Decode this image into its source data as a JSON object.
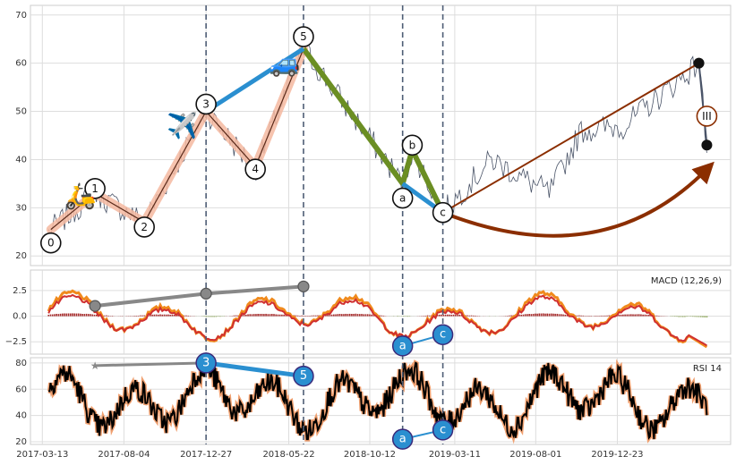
{
  "chart_data": [
    {
      "type": "line",
      "panel": "price",
      "ylim": [
        18,
        72
      ],
      "yticks": [
        20,
        30,
        40,
        50,
        60,
        70
      ],
      "grid": true,
      "series": [],
      "wave_labels": [
        {
          "label": "0",
          "x": "2017-03-28",
          "y": 22.7
        },
        {
          "label": "1",
          "x": "2017-06-14",
          "y": 34.0
        },
        {
          "label": "2",
          "x": "2017-09-09",
          "y": 26.0
        },
        {
          "label": "3",
          "x": "2017-12-27",
          "y": 51.5
        },
        {
          "label": "4",
          "x": "2018-03-24",
          "y": 38.0
        },
        {
          "label": "5",
          "x": "2018-06-17",
          "y": 65.5
        },
        {
          "label": "a",
          "x": "2018-12-09",
          "y": 32.0
        },
        {
          "label": "b",
          "x": "2018-12-26",
          "y": 43.0
        },
        {
          "label": "c",
          "x": "2019-02-18",
          "y": 29.0
        },
        {
          "label": "III",
          "x": "2020-05-29",
          "y": 49.0
        }
      ],
      "impulse_wave": [
        {
          "x": "2017-03-28",
          "y": 25.5
        },
        {
          "x": "2017-06-14",
          "y": 33.0
        },
        {
          "x": "2017-09-09",
          "y": 27.0
        },
        {
          "x": "2017-12-27",
          "y": 50.0
        },
        {
          "x": "2018-03-24",
          "y": 38.5
        },
        {
          "x": "2018-06-17",
          "y": 63.0
        }
      ],
      "correction_wave": [
        {
          "x": "2018-06-17",
          "y": 63.0
        },
        {
          "x": "2018-12-09",
          "y": 35.0
        },
        {
          "x": "2018-12-26",
          "y": 42.0
        },
        {
          "x": "2019-02-18",
          "y": 29.0
        }
      ],
      "trend_links": [
        {
          "from": {
            "x": "2017-12-27",
            "y": 50.0
          },
          "to": {
            "x": "2018-06-17",
            "y": 63.0
          }
        },
        {
          "from": {
            "x": "2018-12-09",
            "y": 35.0
          },
          "to": {
            "x": "2019-02-18",
            "y": 29.0
          }
        }
      ],
      "target_line": {
        "from": {
          "x": "2019-02-18",
          "y": 29.0
        },
        "to": {
          "x": "2020-05-15",
          "y": 60.0
        }
      },
      "target_points": [
        {
          "x": "2020-05-15",
          "y": 60.0
        },
        {
          "x": "2020-05-29",
          "y": 43.0
        }
      ],
      "projection_arrow": {
        "from": {
          "x": "2019-02-18",
          "y": 29.0
        },
        "to": {
          "x": "2020-05-29",
          "y": 38.0
        }
      },
      "dashed_dates": [
        "2017-12-27",
        "2018-06-17",
        "2018-12-09",
        "2019-02-18"
      ],
      "icons": [
        {
          "name": "scooter-icon",
          "glyph": "🛵",
          "x": "2017-05-20",
          "y": 32.5
        },
        {
          "name": "airplane-icon",
          "glyph": "✈️",
          "x": "2017-11-15",
          "y": 47.0
        },
        {
          "name": "car-icon",
          "glyph": "🚙",
          "x": "2018-05-15",
          "y": 60.0
        }
      ]
    },
    {
      "type": "line",
      "panel": "macd",
      "title": "MACD (12,26,9)",
      "ylim": [
        -3.7,
        4.5
      ],
      "yticks": [
        -2.5,
        0.0,
        2.5
      ],
      "ytick_labels": [
        "−2.5",
        "0.0",
        "2.5"
      ],
      "grid": true,
      "divergence_points": [
        {
          "x": "2017-06-14",
          "y": 1.0
        },
        {
          "x": "2017-12-27",
          "y": 2.2
        },
        {
          "x": "2018-06-17",
          "y": 2.9
        }
      ],
      "wave_labels": [
        {
          "label": "a",
          "x": "2018-12-09",
          "y": -2.9
        },
        {
          "label": "c",
          "x": "2019-02-18",
          "y": -1.8
        }
      ]
    },
    {
      "type": "line",
      "panel": "rsi",
      "title": "RSI 14",
      "ylim": [
        18,
        84
      ],
      "yticks": [
        20,
        40,
        60,
        80
      ],
      "grid": true,
      "divergence_points": [
        {
          "x": "2017-06-14",
          "y": 78
        },
        {
          "x": "2017-12-27",
          "y": 80
        }
      ],
      "wave_labels": [
        {
          "label": "3",
          "x": "2017-12-27",
          "y": 80
        },
        {
          "label": "5",
          "x": "2018-06-17",
          "y": 70
        },
        {
          "label": "a",
          "x": "2018-12-09",
          "y": 22
        },
        {
          "label": "c",
          "x": "2019-02-18",
          "y": 29
        }
      ]
    }
  ],
  "x_axis": {
    "range": [
      "2017-02-20",
      "2020-07-10"
    ],
    "ticks": [
      "2017-03-13",
      "2017-08-04",
      "2017-12-27",
      "2018-05-22",
      "2018-10-12",
      "2019-03-11",
      "2019-08-01",
      "2019-12-23"
    ]
  },
  "colors": {
    "price": "#4a5468",
    "impulse_band": "#f4b9a0",
    "impulse_line": "#5a2a1a",
    "trend_link": "#2a8fd0",
    "correction": "#6b8e23",
    "target": "#8b2e00",
    "macd": "#f08a1c",
    "macd_signal": "#d03030",
    "hist_pos": "#a52a2a",
    "hist_neg": "#6b8e23",
    "rsi": "#000000",
    "rsi_halo": "#f0a070",
    "divergence": "#888888",
    "dashed": "#4e5d75",
    "grid": "#dddddd"
  }
}
